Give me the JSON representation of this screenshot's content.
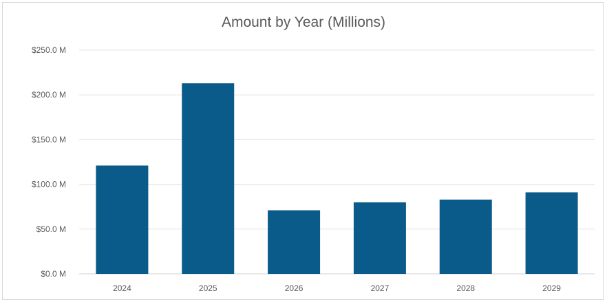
{
  "chart_data": {
    "type": "bar",
    "title": "Amount by Year (Millions)",
    "xlabel": "",
    "ylabel": "",
    "categories": [
      "2024",
      "2025",
      "2026",
      "2027",
      "2028",
      "2029"
    ],
    "values": [
      121,
      213,
      71,
      80,
      83,
      91
    ],
    "unit": "millions USD",
    "ylim": [
      0,
      250
    ],
    "yticks": [
      0,
      50,
      100,
      150,
      200,
      250
    ],
    "ytick_labels": [
      "$0.0 M",
      "$50.0 M",
      "$100.0 M",
      "$150.0 M",
      "$200.0 M",
      "$250.0 M"
    ],
    "grid": true,
    "legend": "none",
    "bar_color": "#0b5b8a",
    "grid_color": "#e4e4e4"
  }
}
